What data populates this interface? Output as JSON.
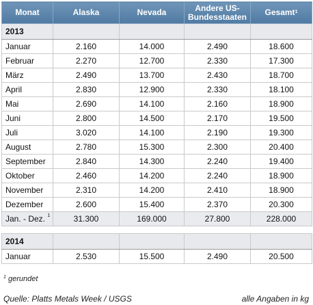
{
  "table": {
    "headers": {
      "month": "Monat",
      "alaska": "Alaska",
      "nevada": "Nevada",
      "other": "Andere US-Bundesstaaten",
      "total": "Gesamt",
      "total_sup": "1"
    },
    "year_2013": {
      "label": "2013",
      "rows": [
        {
          "month": "Januar",
          "alaska": "2.160",
          "nevada": "14.000",
          "other": "2.490",
          "total": "18.600"
        },
        {
          "month": "Februar",
          "alaska": "2.270",
          "nevada": "12.700",
          "other": "2.330",
          "total": "17.300"
        },
        {
          "month": "März",
          "alaska": "2.490",
          "nevada": "13.700",
          "other": "2.430",
          "total": "18.700"
        },
        {
          "month": "April",
          "alaska": "2.830",
          "nevada": "12.900",
          "other": "2.330",
          "total": "18.100"
        },
        {
          "month": "Mai",
          "alaska": "2.690",
          "nevada": "14.100",
          "other": "2.160",
          "total": "18.900"
        },
        {
          "month": "Juni",
          "alaska": "2.800",
          "nevada": "14.500",
          "other": "2.170",
          "total": "19.500"
        },
        {
          "month": "Juli",
          "alaska": "3.020",
          "nevada": "14.100",
          "other": "2.190",
          "total": "19.300"
        },
        {
          "month": "August",
          "alaska": "2.780",
          "nevada": "15.300",
          "other": "2.300",
          "total": "20.400"
        },
        {
          "month": "September",
          "alaska": "2.840",
          "nevada": "14.300",
          "other": "2.240",
          "total": "19.400"
        },
        {
          "month": "Oktober",
          "alaska": "2.460",
          "nevada": "14.200",
          "other": "2.240",
          "total": "18.900"
        },
        {
          "month": "November",
          "alaska": "2.310",
          "nevada": "14.200",
          "other": "2.410",
          "total": "18.900"
        },
        {
          "month": "Dezember",
          "alaska": "2.600",
          "nevada": "15.400",
          "other": "2.370",
          "total": "20.300"
        }
      ],
      "total_row": {
        "month": "Jan. - Dez.",
        "month_sup": "1",
        "alaska": "31.300",
        "nevada": "169.000",
        "other": "27.800",
        "total": "228.000"
      }
    },
    "year_2014": {
      "label": "2014",
      "rows": [
        {
          "month": "Januar",
          "alaska": "2.530",
          "nevada": "15.500",
          "other": "2.490",
          "total": "20.500"
        }
      ]
    }
  },
  "footnote": {
    "sup": "1",
    "text": "gerundet"
  },
  "source": "Quelle: Platts Metals Week / USGS",
  "units": "alle Angaben in kg"
}
